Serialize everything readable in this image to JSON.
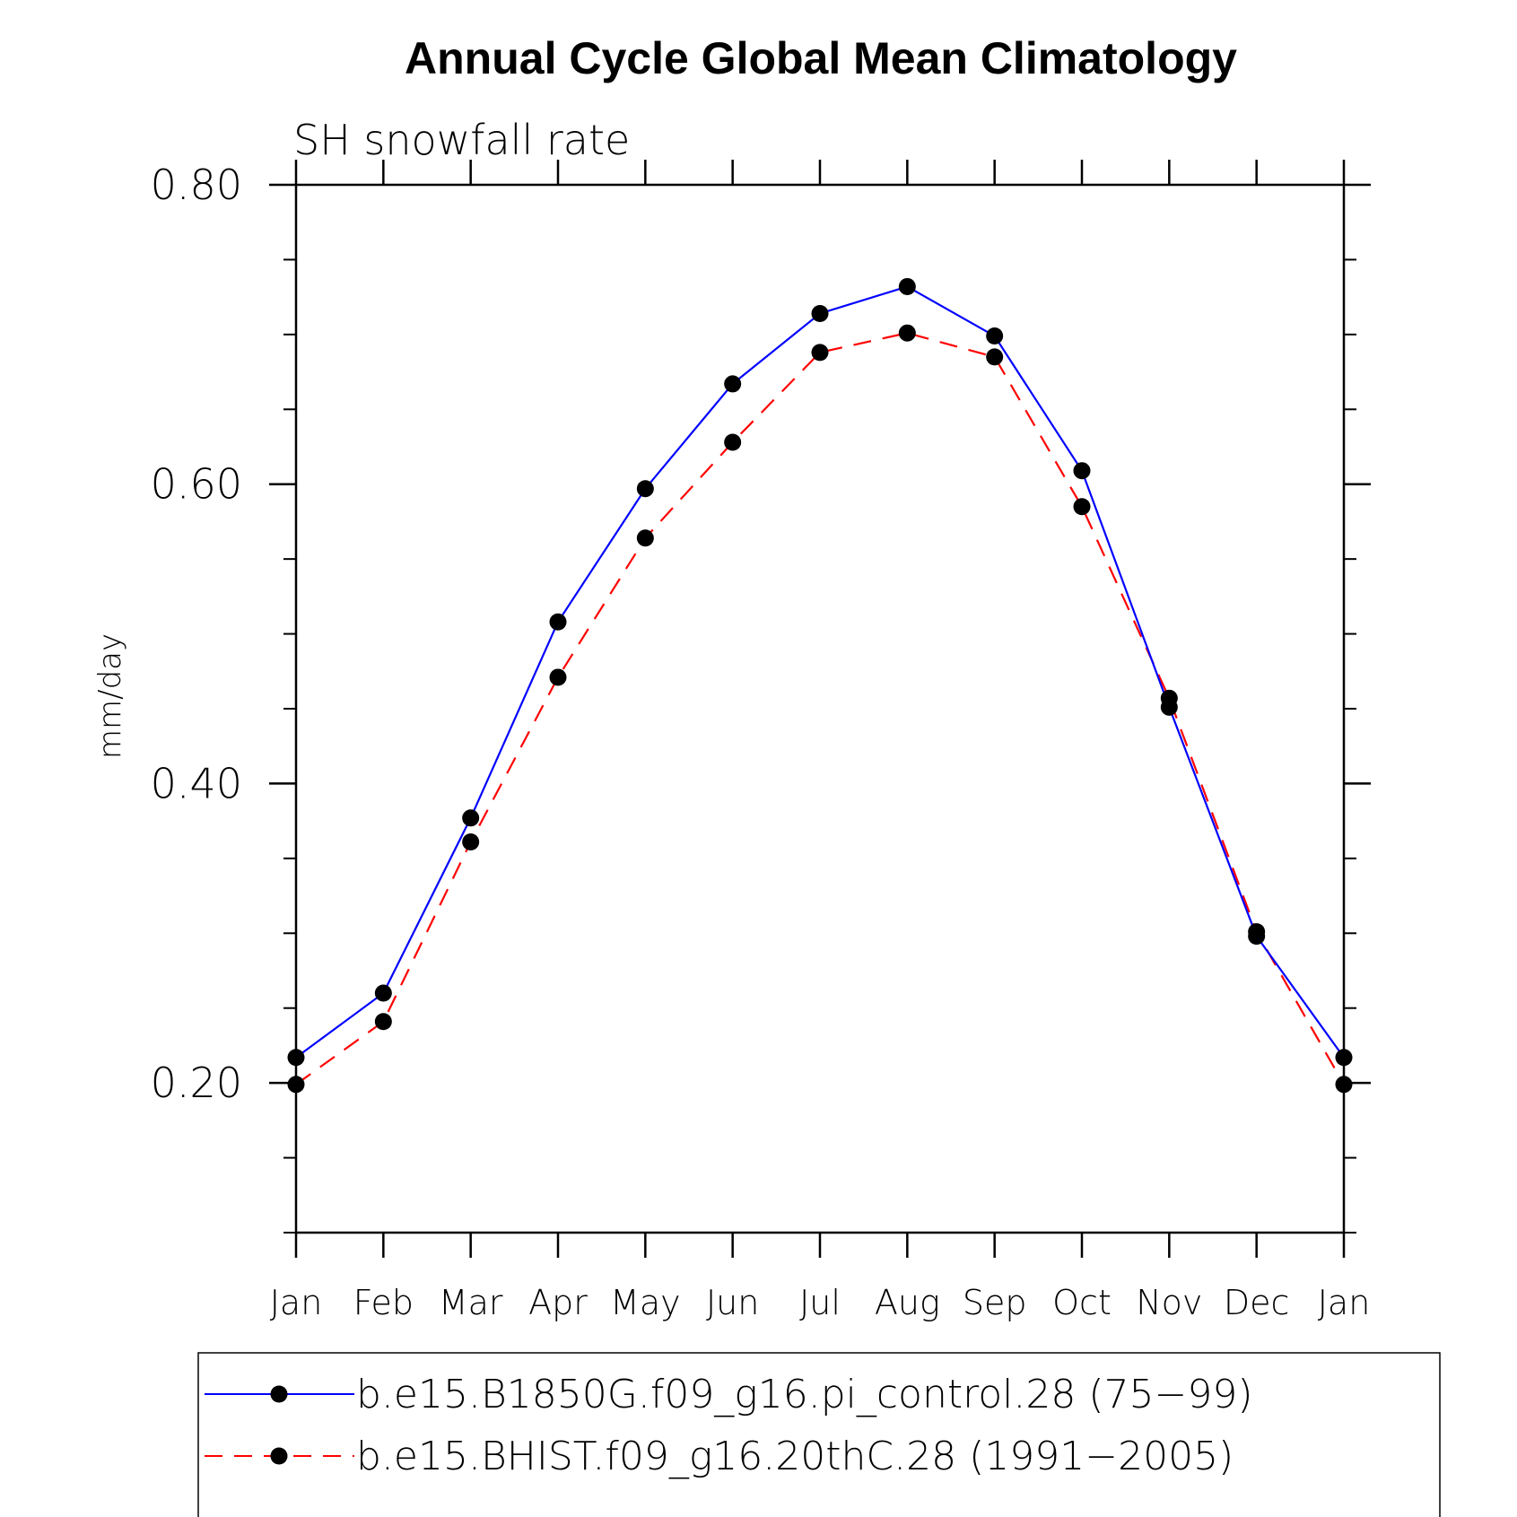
{
  "chart_data": {
    "type": "line",
    "title": "Annual Cycle Global Mean Climatology",
    "subtitle": "SH snowfall rate",
    "xlabel": "",
    "ylabel": "mm/day",
    "categories": [
      "Jan",
      "Feb",
      "Mar",
      "Apr",
      "May",
      "Jun",
      "Jul",
      "Aug",
      "Sep",
      "Oct",
      "Nov",
      "Dec",
      "Jan"
    ],
    "ylim": [
      0.1,
      0.8
    ],
    "yticks": [
      0.2,
      0.4,
      0.6,
      0.8
    ],
    "ytick_labels": [
      "0.20",
      "0.40",
      "0.60",
      "0.80"
    ],
    "yminor_step": 0.05,
    "grid": false,
    "legend_position": "bottom",
    "series": [
      {
        "name": "b.e15.B1850G.f09_g16.pi_control.28 (75−99)",
        "color": "#0000ff",
        "dash": "solid",
        "marker": "filled-circle",
        "values": [
          0.217,
          0.26,
          0.377,
          0.508,
          0.597,
          0.667,
          0.714,
          0.732,
          0.699,
          0.609,
          0.451,
          0.298,
          0.217
        ]
      },
      {
        "name": "b.e15.BHIST.f09_g16.20thC.28 (1991−2005)",
        "color": "#ff0000",
        "dash": "dashed",
        "marker": "filled-circle",
        "values": [
          0.199,
          0.241,
          0.361,
          0.471,
          0.564,
          0.628,
          0.688,
          0.701,
          0.685,
          0.585,
          0.457,
          0.301,
          0.199
        ]
      }
    ]
  }
}
